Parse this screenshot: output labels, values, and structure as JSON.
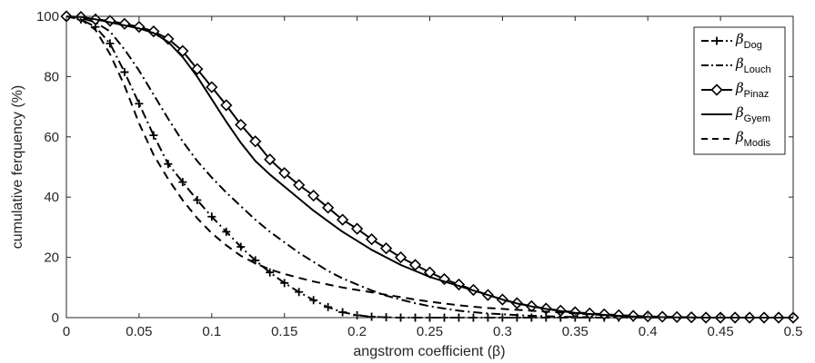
{
  "chart_data": {
    "type": "line",
    "xlabel": "angstrom coefficient (β)",
    "ylabel": "cumulative ferquency (%)",
    "xlim": [
      0,
      0.5
    ],
    "ylim": [
      0,
      100
    ],
    "xticks": [
      "0",
      "0.05",
      "0.1",
      "0.15",
      "0.2",
      "0.25",
      "0.3",
      "0.35",
      "0.4",
      "0.45",
      "0.5"
    ],
    "yticks": [
      "0",
      "20",
      "40",
      "60",
      "80",
      "100"
    ],
    "grid": false,
    "legend_position": "top-right",
    "series": [
      {
        "name": "βDog",
        "symbol": "β",
        "subscript": "Dog",
        "line_style": "dashdot",
        "marker": "plus",
        "color": "#000000",
        "x": [
          0,
          0.01,
          0.02,
          0.03,
          0.04,
          0.05,
          0.06,
          0.07,
          0.08,
          0.09,
          0.1,
          0.11,
          0.12,
          0.13,
          0.14,
          0.15,
          0.16,
          0.17,
          0.18,
          0.19,
          0.2,
          0.21,
          0.22,
          0.23,
          0.24,
          0.25,
          0.26,
          0.27,
          0.28,
          0.29,
          0.3,
          0.31,
          0.32,
          0.33,
          0.34,
          0.35,
          0.36,
          0.37,
          0.38,
          0.39,
          0.4,
          0.41,
          0.42,
          0.43,
          0.44,
          0.45,
          0.46,
          0.47,
          0.48,
          0.49,
          0.5
        ],
        "y": [
          100,
          99,
          96.5,
          91,
          81.5,
          71,
          60.5,
          51,
          45,
          39,
          33.5,
          28.5,
          23.5,
          19,
          15,
          11.5,
          8.5,
          5.8,
          3.5,
          1.8,
          0.8,
          0.3,
          0.1,
          0,
          0,
          0,
          0,
          0,
          0,
          0,
          0,
          0,
          0,
          0,
          0,
          0,
          0,
          0,
          0,
          0,
          0,
          0,
          0,
          0,
          0,
          0,
          0,
          0,
          0,
          0,
          0
        ]
      },
      {
        "name": "βLouch",
        "symbol": "β",
        "subscript": "Louch",
        "line_style": "dashdot",
        "marker": "none",
        "color": "#000000",
        "x": [
          0,
          0.01,
          0.02,
          0.03,
          0.04,
          0.05,
          0.06,
          0.07,
          0.08,
          0.09,
          0.1,
          0.11,
          0.12,
          0.13,
          0.14,
          0.15,
          0.16,
          0.17,
          0.18,
          0.19,
          0.2,
          0.21,
          0.22,
          0.23,
          0.24,
          0.25,
          0.26,
          0.27,
          0.28,
          0.29,
          0.3,
          0.31,
          0.32,
          0.33,
          0.34,
          0.35,
          0.36,
          0.37,
          0.38,
          0.39,
          0.4,
          0.41,
          0.42,
          0.43,
          0.44,
          0.45,
          0.46,
          0.47,
          0.48,
          0.49,
          0.5
        ],
        "y": [
          100,
          99.5,
          98,
          95,
          89,
          82,
          74,
          66,
          58.5,
          52,
          46.5,
          41.5,
          37,
          32.5,
          28.5,
          25,
          21.5,
          18.5,
          15.5,
          13,
          11,
          9,
          7.3,
          6,
          4.8,
          3.8,
          3,
          2.3,
          1.8,
          1.4,
          1.1,
          0.8,
          0.6,
          0.45,
          0.3,
          0.2,
          0.15,
          0.1,
          0.05,
          0,
          0,
          0,
          0,
          0,
          0,
          0,
          0,
          0,
          0,
          0,
          0
        ]
      },
      {
        "name": "βPinaz",
        "symbol": "β",
        "subscript": "Pinaz",
        "line_style": "solid",
        "marker": "diamond",
        "color": "#000000",
        "x": [
          0,
          0.01,
          0.02,
          0.03,
          0.04,
          0.05,
          0.06,
          0.07,
          0.08,
          0.09,
          0.1,
          0.11,
          0.12,
          0.13,
          0.14,
          0.15,
          0.16,
          0.17,
          0.18,
          0.19,
          0.2,
          0.21,
          0.22,
          0.23,
          0.24,
          0.25,
          0.26,
          0.27,
          0.28,
          0.29,
          0.3,
          0.31,
          0.32,
          0.33,
          0.34,
          0.35,
          0.36,
          0.37,
          0.38,
          0.39,
          0.4,
          0.41,
          0.42,
          0.43,
          0.44,
          0.45,
          0.46,
          0.47,
          0.48,
          0.49,
          0.5
        ],
        "y": [
          100,
          99.8,
          99,
          98.5,
          97.5,
          96.5,
          95,
          92.5,
          88.5,
          82.5,
          76.5,
          70.5,
          64,
          58.5,
          52.5,
          48,
          44,
          40.5,
          36.5,
          32.5,
          29.5,
          26,
          23,
          20,
          17.5,
          15,
          12.8,
          11,
          9.2,
          7.5,
          6,
          4.8,
          3.8,
          3,
          2.3,
          1.8,
          1.4,
          1.1,
          0.8,
          0.6,
          0.4,
          0.3,
          0.2,
          0.1,
          0,
          0,
          0,
          0,
          0,
          0,
          0
        ]
      },
      {
        "name": "βGyem",
        "symbol": "β",
        "subscript": "Gyem",
        "line_style": "solid",
        "marker": "none",
        "color": "#000000",
        "x": [
          0,
          0.01,
          0.02,
          0.03,
          0.04,
          0.05,
          0.06,
          0.07,
          0.08,
          0.09,
          0.1,
          0.11,
          0.12,
          0.13,
          0.14,
          0.15,
          0.16,
          0.17,
          0.18,
          0.19,
          0.2,
          0.21,
          0.22,
          0.23,
          0.24,
          0.25,
          0.26,
          0.27,
          0.28,
          0.29,
          0.3,
          0.31,
          0.32,
          0.33,
          0.34,
          0.35,
          0.36,
          0.37,
          0.38,
          0.39,
          0.4,
          0.41,
          0.42,
          0.43,
          0.44,
          0.45,
          0.46,
          0.47,
          0.48,
          0.49,
          0.5
        ],
        "y": [
          100,
          99.8,
          99,
          98,
          97,
          96,
          94.5,
          91.5,
          86.5,
          80,
          72.5,
          65,
          58,
          52,
          47.5,
          43.5,
          39.5,
          35.5,
          32,
          28.5,
          25.5,
          22.5,
          20,
          17.5,
          15.5,
          13.5,
          12,
          10.5,
          9,
          7.5,
          6,
          4.7,
          3.7,
          2.9,
          2.2,
          1.6,
          1.2,
          0.9,
          0.6,
          0.4,
          0.25,
          0.15,
          0.1,
          0.05,
          0,
          0,
          0,
          0,
          0,
          0,
          0
        ]
      },
      {
        "name": "βModis",
        "symbol": "β",
        "subscript": "Modis",
        "line_style": "dashed",
        "marker": "none",
        "color": "#000000",
        "x": [
          0,
          0.01,
          0.02,
          0.03,
          0.04,
          0.05,
          0.06,
          0.07,
          0.08,
          0.09,
          0.1,
          0.11,
          0.12,
          0.13,
          0.14,
          0.15,
          0.16,
          0.17,
          0.18,
          0.19,
          0.2,
          0.21,
          0.22,
          0.23,
          0.24,
          0.25,
          0.26,
          0.27,
          0.28,
          0.29,
          0.3,
          0.31,
          0.32,
          0.33,
          0.34,
          0.35,
          0.36,
          0.37,
          0.38,
          0.39,
          0.4,
          0.41,
          0.42,
          0.43,
          0.44,
          0.45,
          0.46,
          0.47,
          0.48,
          0.49,
          0.5
        ],
        "y": [
          100,
          99,
          95.5,
          87.5,
          77,
          64.5,
          54,
          46,
          39,
          33,
          28,
          24,
          20.5,
          18,
          16,
          14.5,
          13.2,
          12,
          11,
          10,
          9.2,
          8.4,
          7.6,
          6.8,
          6,
          5.3,
          4.7,
          4.1,
          3.6,
          3.2,
          2.9,
          2.6,
          2.3,
          2,
          1.7,
          1.4,
          1.1,
          0.8,
          0.5,
          0.3,
          0.1,
          0,
          0,
          0,
          0,
          0,
          0,
          0,
          0,
          0,
          0
        ]
      }
    ]
  }
}
